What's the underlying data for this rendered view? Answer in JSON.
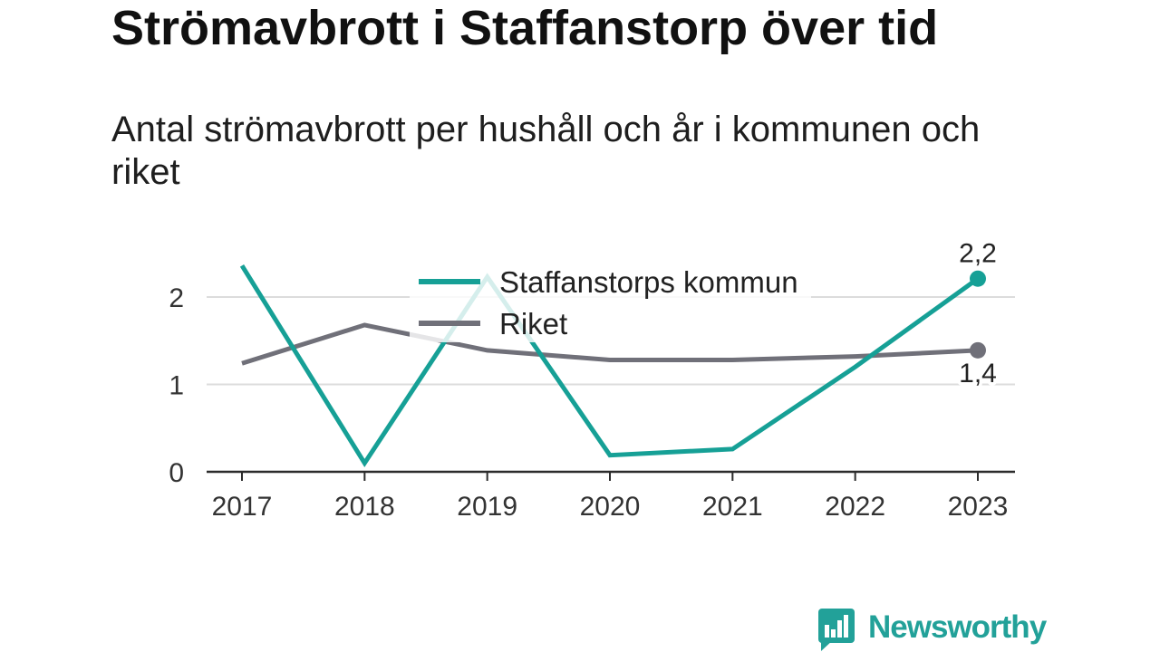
{
  "chart_data": {
    "type": "line",
    "title": "Strömavbrott i Staffanstorp över tid",
    "subtitle": "Antal strömavbrott per hushåll och år i kommunen och riket",
    "x": [
      "2017",
      "2018",
      "2019",
      "2020",
      "2021",
      "2022",
      "2023"
    ],
    "ylim": [
      0,
      2.4
    ],
    "yticks": [
      0,
      1,
      2
    ],
    "grid": true,
    "legend": "top-center",
    "series": [
      {
        "name": "Staffanstorps kommun",
        "color": "#16a096",
        "values": [
          2.36,
          0.1,
          2.23,
          0.19,
          0.26,
          1.2,
          2.21
        ],
        "end_label": "2,2"
      },
      {
        "name": "Riket",
        "color": "#707079",
        "values": [
          1.24,
          1.68,
          1.39,
          1.28,
          1.28,
          1.32,
          1.39
        ],
        "end_label": "1,4"
      }
    ]
  },
  "brand": {
    "name": "Newsworthy",
    "color": "#22a199",
    "icon": "bar-chart-speech-bubble-icon"
  }
}
